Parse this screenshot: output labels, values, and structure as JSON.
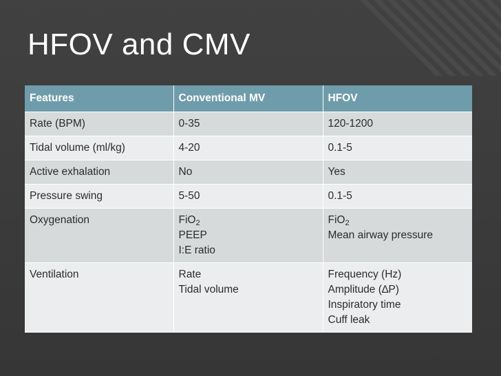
{
  "slide": {
    "title": "HFOV and CMV"
  },
  "table": {
    "headers": [
      "Features",
      "Conventional MV",
      "HFOV"
    ],
    "rows": [
      [
        "Rate (BPM)",
        "0-35",
        "120-1200"
      ],
      [
        "Tidal volume (ml/kg)",
        "4-20",
        "0.1-5"
      ],
      [
        "Active exhalation",
        "No",
        "Yes"
      ],
      [
        "Pressure swing",
        "5-50",
        "0.1-5"
      ]
    ],
    "oxygenation": {
      "label": "Oxygenation",
      "cmv": {
        "fio": "FiO",
        "fio_sub": "2",
        "lines": [
          "PEEP",
          "I:E ratio"
        ]
      },
      "hfov": {
        "fio": "FiO",
        "fio_sub": "2",
        "lines": [
          "Mean airway pressure"
        ]
      }
    },
    "ventilation": {
      "label": "Ventilation",
      "cmv": [
        "Rate",
        "Tidal volume"
      ],
      "hfov": [
        "Frequency (Hz)",
        "Amplitude (∆P)",
        "Inspiratory time",
        "Cuff leak"
      ]
    }
  },
  "colors": {
    "header": "#6f9caa",
    "row_dark": "#d7dadb",
    "row_light": "#ecedee",
    "background": "#3a3a3a"
  }
}
